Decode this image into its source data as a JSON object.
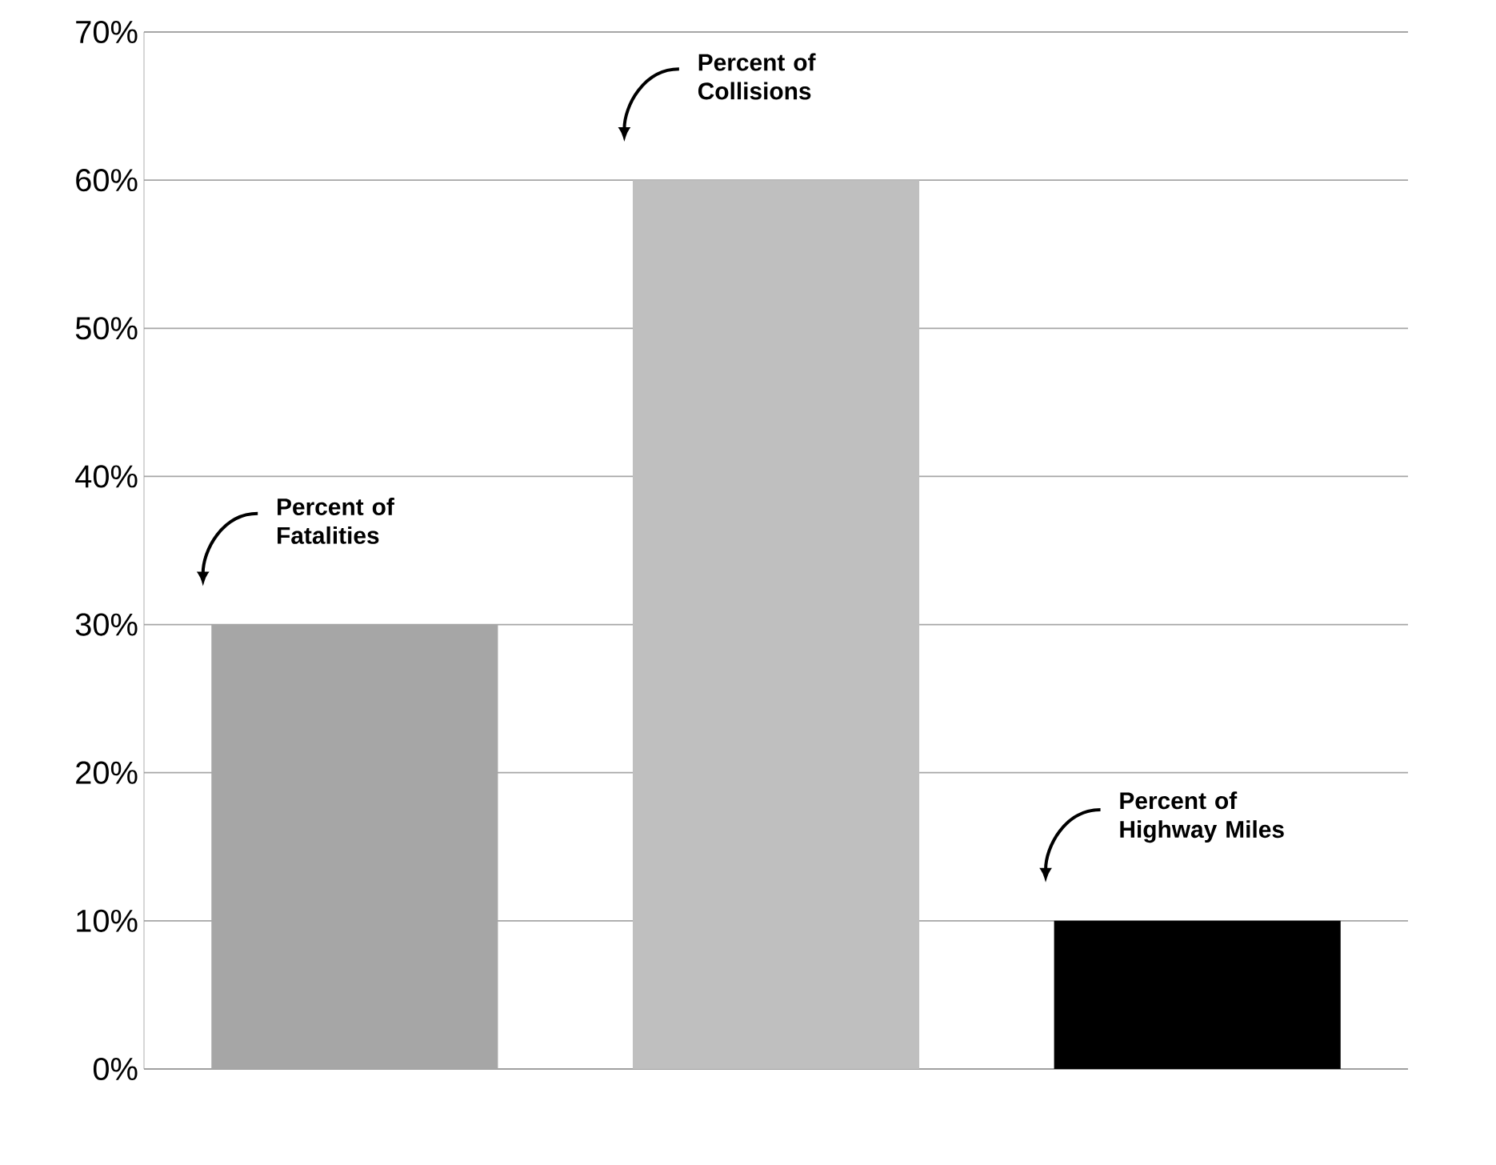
{
  "chart_data": {
    "type": "bar",
    "categories": [
      null,
      null,
      null
    ],
    "values": [
      30,
      60,
      10
    ],
    "colors": [
      "#a6a6a6",
      "#bfbfbf",
      "#000000"
    ],
    "ylim": [
      0,
      70
    ],
    "yticks": [
      {
        "value": 0,
        "label": "0%"
      },
      {
        "value": 10,
        "label": "10%"
      },
      {
        "value": 20,
        "label": "20%"
      },
      {
        "value": 30,
        "label": "30%"
      },
      {
        "value": 40,
        "label": "40%"
      },
      {
        "value": 50,
        "label": "50%"
      },
      {
        "value": 60,
        "label": "60%"
      },
      {
        "value": 70,
        "label": "70%"
      }
    ],
    "grid": "y",
    "annotations": [
      "Percent of Fatalities",
      "Percent of Collisions",
      "Percent of Highway Miles"
    ]
  }
}
